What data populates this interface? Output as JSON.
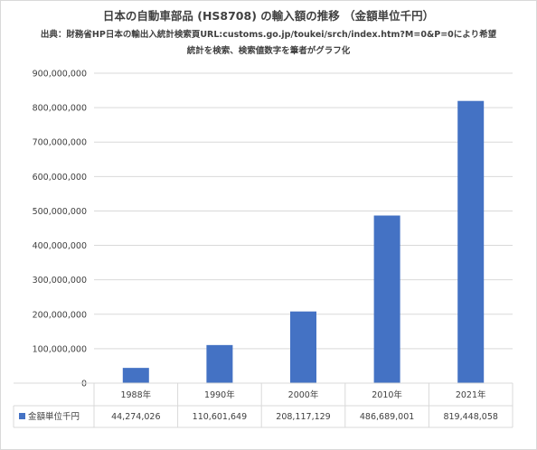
{
  "chart_data": {
    "type": "bar",
    "title": "日本の自動車部品 (HS8708) の輸入額の推移 （金額単位千円）",
    "source_lines": [
      "出典：財務省HP日本の輸出入統計検索頁URL:customs.go.jp/toukei/srch/index.htm?M=0&P=0により希望",
      "統計を検索、検索値数字を筆者がグラフ化"
    ],
    "categories": [
      "1988年",
      "1990年",
      "2000年",
      "2010年",
      "2021年"
    ],
    "series": [
      {
        "name": "金額単位千円",
        "values": [
          44274026,
          110601649,
          208117129,
          486689001,
          819448058
        ],
        "value_labels": [
          "44,274,026",
          "110,601,649",
          "208,117,129",
          "486,689,001",
          "819,448,058"
        ],
        "color": "#4472c4"
      }
    ],
    "ylim": [
      0,
      900000000
    ],
    "y_ticks": [
      0,
      100000000,
      200000000,
      300000000,
      400000000,
      500000000,
      600000000,
      700000000,
      800000000,
      900000000
    ],
    "y_tick_labels": [
      "0",
      "100,000,000",
      "200,000,000",
      "300,000,000",
      "400,000,000",
      "500,000,000",
      "600,000,000",
      "700,000,000",
      "800,000,000",
      "900,000,000"
    ],
    "grid": true,
    "legend": "data-table",
    "gridline_color": "#d9d9d9"
  }
}
